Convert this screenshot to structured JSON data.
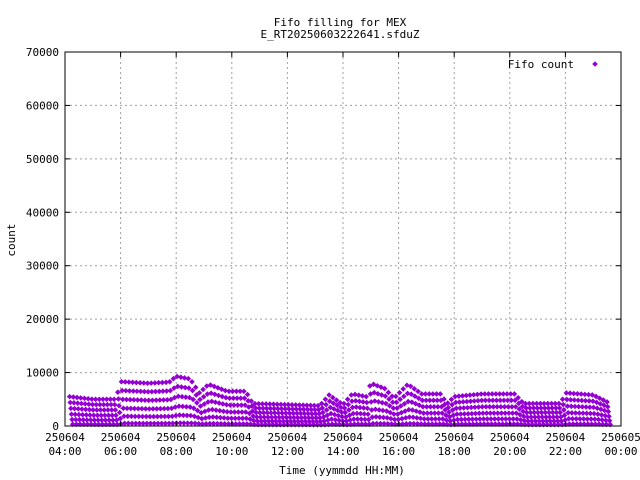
{
  "chart_data": {
    "type": "scatter",
    "title": "Fifo filling for MEX",
    "subtitle": "E_RT20250603222641.sfduZ",
    "xlabel": "Time (yymmdd HH:MM)",
    "ylabel": "count",
    "xlim": [
      "250604 04:00",
      "250605 00:00"
    ],
    "ylim": [
      0,
      70000
    ],
    "grid": true,
    "legend_position": "top-right",
    "x_ticks": [
      {
        "date": "250604",
        "time": "04:00"
      },
      {
        "date": "250604",
        "time": "06:00"
      },
      {
        "date": "250604",
        "time": "08:00"
      },
      {
        "date": "250604",
        "time": "10:00"
      },
      {
        "date": "250604",
        "time": "12:00"
      },
      {
        "date": "250604",
        "time": "14:00"
      },
      {
        "date": "250604",
        "time": "16:00"
      },
      {
        "date": "250604",
        "time": "18:00"
      },
      {
        "date": "250604",
        "time": "20:00"
      },
      {
        "date": "250604",
        "time": "22:00"
      },
      {
        "date": "250605",
        "time": "00:00"
      }
    ],
    "y_ticks": [
      "0",
      "10000",
      "20000",
      "30000",
      "40000",
      "50000",
      "60000",
      "70000"
    ],
    "series": [
      {
        "name": "Fifo count",
        "color": "#9400d3",
        "marker": "diamond",
        "x_start": "250604 04:10",
        "x_end": "250604 23:30",
        "sawtooth_envelope": [
          {
            "x": "250604 04:10",
            "max": 5500
          },
          {
            "x": "250604 05:00",
            "max": 5000
          },
          {
            "x": "250604 05:50",
            "max": 5000
          },
          {
            "x": "250604 06:00",
            "max": 8300
          },
          {
            "x": "250604 07:00",
            "max": 8000
          },
          {
            "x": "250604 07:45",
            "max": 8200
          },
          {
            "x": "250604 08:00",
            "max": 9300
          },
          {
            "x": "250604 08:30",
            "max": 8800
          },
          {
            "x": "250604 08:50",
            "max": 6200
          },
          {
            "x": "250604 09:10",
            "max": 7800
          },
          {
            "x": "250604 09:50",
            "max": 6500
          },
          {
            "x": "250604 10:30",
            "max": 6500
          },
          {
            "x": "250604 10:45",
            "max": 4200
          },
          {
            "x": "250604 13:10",
            "max": 3800
          },
          {
            "x": "250604 13:30",
            "max": 5800
          },
          {
            "x": "250604 14:00",
            "max": 4000
          },
          {
            "x": "250604 14:20",
            "max": 6000
          },
          {
            "x": "250604 14:50",
            "max": 5500
          },
          {
            "x": "250604 15:00",
            "max": 8000
          },
          {
            "x": "250604 15:30",
            "max": 7000
          },
          {
            "x": "250604 15:50",
            "max": 5200
          },
          {
            "x": "250604 16:20",
            "max": 7800
          },
          {
            "x": "250604 16:50",
            "max": 6000
          },
          {
            "x": "250604 17:30",
            "max": 6000
          },
          {
            "x": "250604 17:45",
            "max": 4200
          },
          {
            "x": "250604 18:00",
            "max": 5500
          },
          {
            "x": "250604 19:00",
            "max": 6000
          },
          {
            "x": "250604 20:10",
            "max": 6000
          },
          {
            "x": "250604 20:30",
            "max": 4200
          },
          {
            "x": "250604 21:50",
            "max": 4200
          },
          {
            "x": "250604 22:00",
            "max": 6200
          },
          {
            "x": "250604 23:00",
            "max": 5800
          },
          {
            "x": "250604 23:30",
            "max": 4500
          }
        ]
      }
    ]
  }
}
